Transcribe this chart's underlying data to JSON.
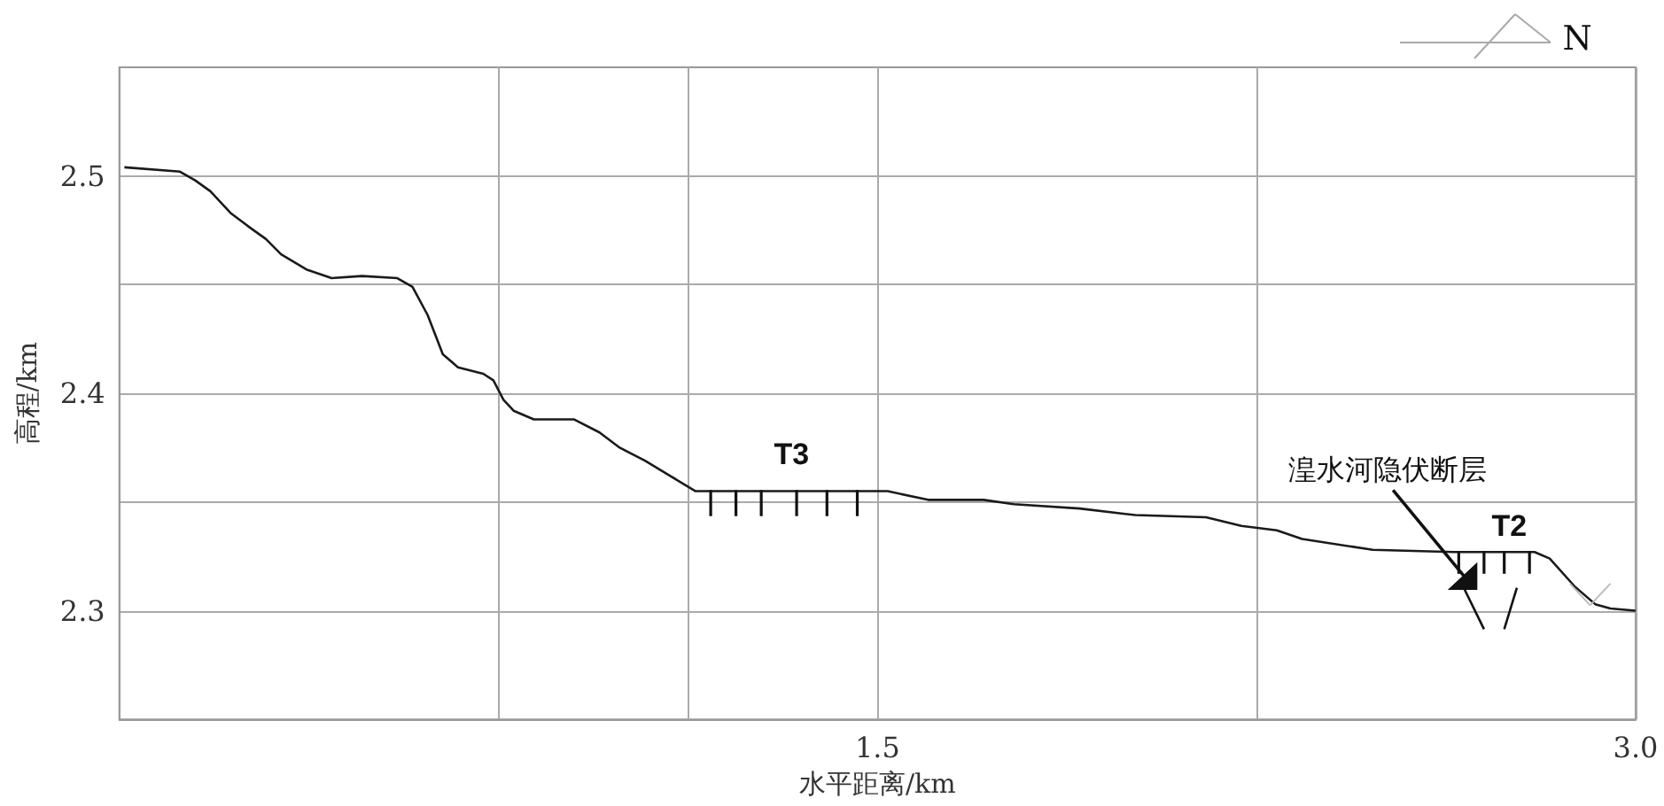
{
  "chart_data": {
    "type": "line",
    "xlabel": "水平距离/km",
    "ylabel": "高程/km",
    "x": [
      0.01,
      0.12,
      0.15,
      0.18,
      0.22,
      0.26,
      0.29,
      0.32,
      0.37,
      0.42,
      0.48,
      0.55,
      0.58,
      0.61,
      0.64,
      0.67,
      0.72,
      0.74,
      0.76,
      0.78,
      0.82,
      0.9,
      0.95,
      0.99,
      1.04,
      1.09,
      1.14,
      1.3,
      1.52,
      1.6,
      1.71,
      1.77,
      1.9,
      2.01,
      2.15,
      2.22,
      2.29,
      2.34,
      2.48,
      2.64,
      2.8,
      2.83,
      2.88,
      2.92,
      2.95,
      3.0
    ],
    "series": [
      {
        "color": "#1a1a1a",
        "values": [
          2.504,
          2.502,
          2.498,
          2.493,
          2.483,
          2.476,
          2.471,
          2.464,
          2.457,
          2.453,
          2.454,
          2.453,
          2.449,
          2.436,
          2.418,
          2.412,
          2.409,
          2.406,
          2.397,
          2.392,
          2.388,
          2.388,
          2.382,
          2.375,
          2.369,
          2.362,
          2.355,
          2.355,
          2.355,
          2.351,
          2.351,
          2.349,
          2.347,
          2.344,
          2.343,
          2.339,
          2.337,
          2.333,
          2.328,
          2.327,
          2.327,
          2.324,
          2.311,
          2.303,
          2.301,
          2.3
        ]
      }
    ],
    "xlim": [
      0,
      3.0
    ],
    "xticks": [
      {
        "value": 0.75,
        "label": null
      },
      {
        "value": 1.125,
        "label": null
      },
      1.5,
      {
        "value": 2.25,
        "label": null
      },
      {
        "value": 3,
        "label": "3.0"
      }
    ],
    "ylim": [
      2.25,
      2.55
    ],
    "yticks": [
      2.3,
      {
        "value": 2.35,
        "label": null
      },
      2.4,
      {
        "value": 2.45,
        "label": null
      },
      2.5
    ],
    "grid": true,
    "marker": "none",
    "line_style": "solid",
    "annotations": [
      "T3",
      "T2",
      "湟水河隐伏断层",
      "N"
    ]
  }
}
